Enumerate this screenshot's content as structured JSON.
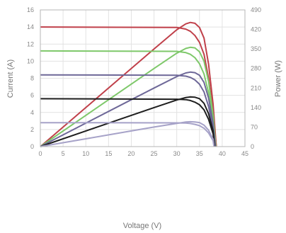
{
  "chart_data": {
    "type": "line",
    "title": "",
    "xlabel": "Voltage (V)",
    "ylabel_left": "Current (A)",
    "ylabel_right": "Power (W)",
    "xlim": [
      0,
      45
    ],
    "ylim_left": [
      0,
      16
    ],
    "ylim_right": [
      0,
      490
    ],
    "x_ticks": [
      0,
      5,
      10,
      15,
      20,
      25,
      30,
      35,
      40,
      45
    ],
    "y_ticks_left": [
      0,
      2,
      4,
      6,
      8,
      10,
      12,
      14,
      16
    ],
    "y_ticks_right": [
      0,
      70,
      140,
      210,
      280,
      350,
      420,
      490
    ],
    "grid": true,
    "legend": "none",
    "series": [
      {
        "kind": "current",
        "color": "#c0404a",
        "x": [
          0,
          30,
          32,
          33,
          34,
          35,
          36,
          37,
          38,
          38.7
        ],
        "y": [
          14.0,
          13.95,
          13.75,
          13.5,
          13.0,
          12.2,
          10.8,
          8.0,
          4.0,
          0
        ]
      },
      {
        "kind": "power",
        "color": "#c0404a",
        "x": [
          0,
          10,
          20,
          25,
          30,
          32,
          33,
          34,
          35,
          36,
          37,
          38,
          38.7
        ],
        "y": [
          0,
          140,
          280,
          350,
          419,
          440,
          445,
          442,
          427,
          389,
          296,
          152,
          0
        ]
      },
      {
        "kind": "current",
        "color": "#7ec86a",
        "x": [
          0,
          30,
          32,
          33,
          34,
          35,
          36,
          37,
          38,
          38.6
        ],
        "y": [
          11.2,
          11.15,
          11.0,
          10.8,
          10.4,
          9.7,
          8.5,
          6.3,
          3.0,
          0
        ]
      },
      {
        "kind": "power",
        "color": "#7ec86a",
        "x": [
          0,
          10,
          20,
          25,
          30,
          32,
          33,
          34,
          35,
          36,
          37,
          38,
          38.6
        ],
        "y": [
          0,
          112,
          224,
          280,
          335,
          352,
          356,
          354,
          340,
          306,
          233,
          114,
          0
        ]
      },
      {
        "kind": "current",
        "color": "#6e6898",
        "x": [
          0,
          30,
          32,
          33,
          34,
          35,
          36,
          37,
          38,
          38.5
        ],
        "y": [
          8.4,
          8.35,
          8.25,
          8.1,
          7.8,
          7.3,
          6.4,
          4.7,
          2.2,
          0
        ]
      },
      {
        "kind": "power",
        "color": "#6e6898",
        "x": [
          0,
          10,
          20,
          25,
          30,
          32,
          33,
          34,
          35,
          36,
          37,
          38,
          38.5
        ],
        "y": [
          0,
          84,
          168,
          210,
          251,
          264,
          267,
          265,
          256,
          230,
          174,
          84,
          0
        ]
      },
      {
        "kind": "current",
        "color": "#1e1e1e",
        "x": [
          0,
          30,
          32,
          33,
          34,
          35,
          36,
          37,
          38,
          38.3
        ],
        "y": [
          5.6,
          5.55,
          5.5,
          5.4,
          5.2,
          4.9,
          4.3,
          3.2,
          1.5,
          0
        ]
      },
      {
        "kind": "power",
        "color": "#1e1e1e",
        "x": [
          0,
          10,
          20,
          25,
          30,
          32,
          33,
          34,
          35,
          36,
          37,
          38,
          38.3
        ],
        "y": [
          0,
          56,
          112,
          140,
          167,
          176,
          178,
          177,
          172,
          155,
          118,
          57,
          0
        ]
      },
      {
        "kind": "current",
        "color": "#a6a2c8",
        "x": [
          0,
          30,
          32,
          33,
          34,
          35,
          36,
          37,
          38,
          38.2
        ],
        "y": [
          2.8,
          2.78,
          2.75,
          2.7,
          2.6,
          2.45,
          2.15,
          1.6,
          0.7,
          0
        ]
      },
      {
        "kind": "power",
        "color": "#a6a2c8",
        "x": [
          0,
          10,
          20,
          25,
          30,
          32,
          33,
          34,
          35,
          36,
          37,
          38,
          38.2
        ],
        "y": [
          0,
          28,
          56,
          70,
          83,
          88,
          89,
          88,
          86,
          77,
          59,
          27,
          0
        ]
      }
    ]
  }
}
